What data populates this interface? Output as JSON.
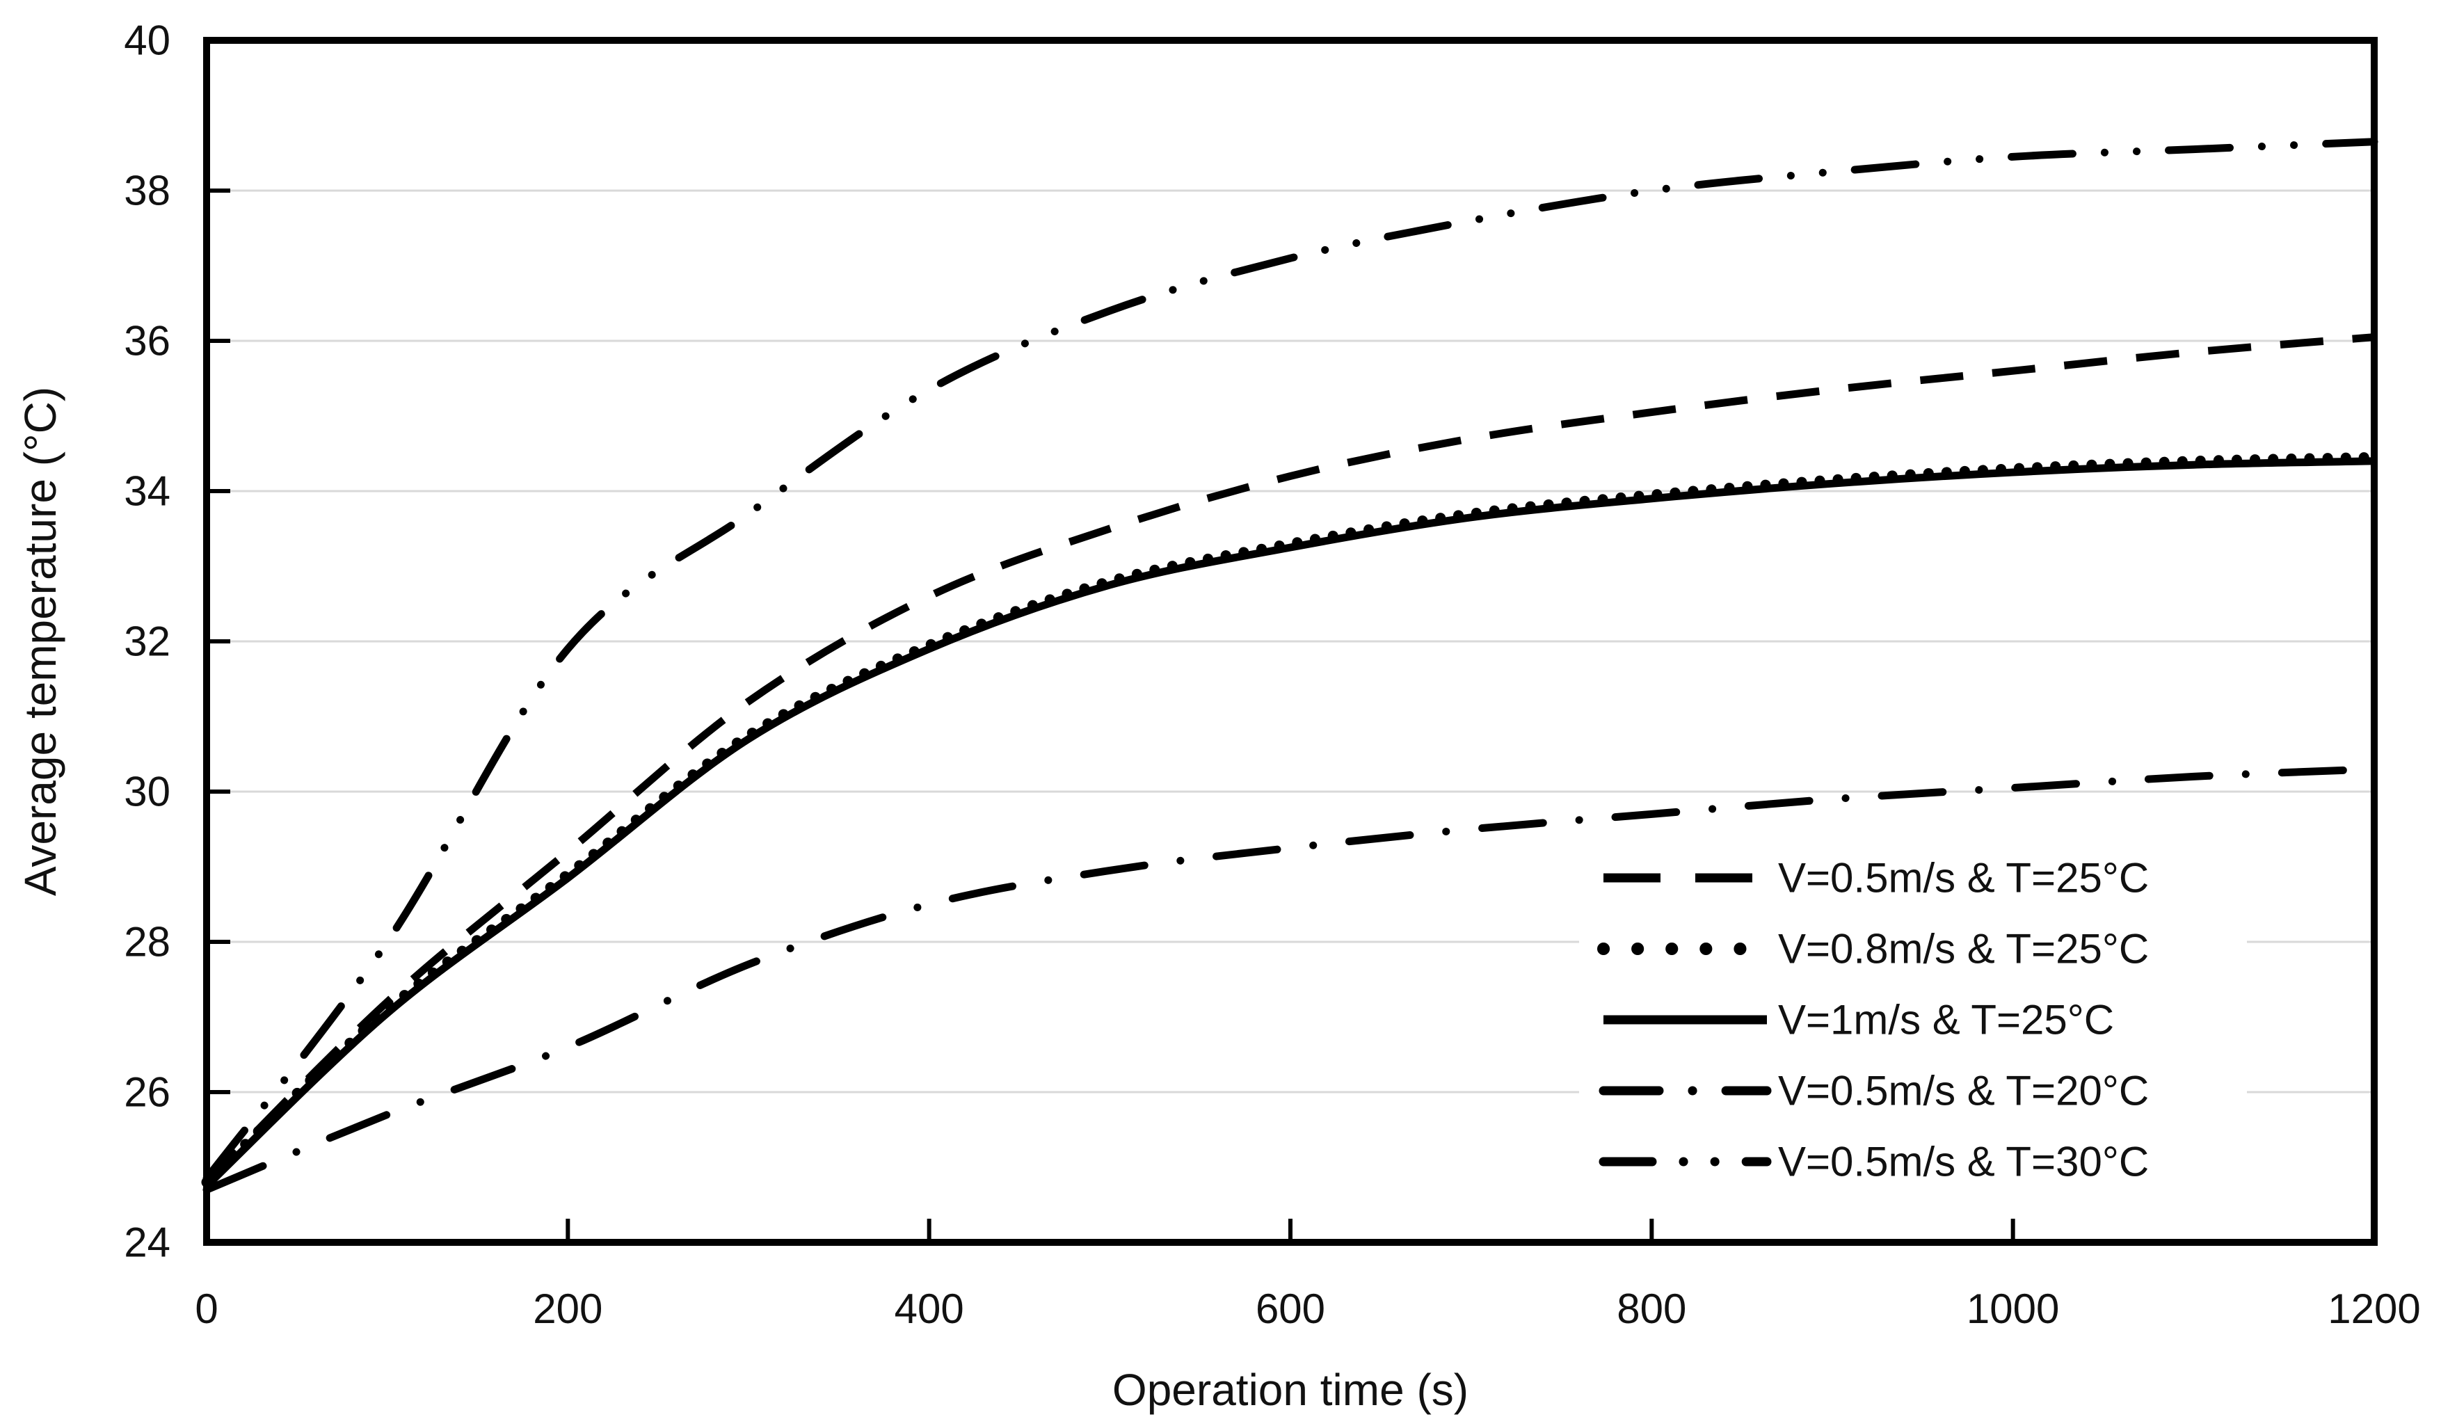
{
  "chart_data": {
    "type": "line",
    "title": "",
    "xlabel": "Operation time (s)",
    "ylabel": "Average temperature (°C)",
    "xlim": [
      0,
      1200
    ],
    "ylim": [
      24,
      40
    ],
    "x_ticks": [
      0,
      200,
      400,
      600,
      800,
      1000,
      1200
    ],
    "y_ticks": [
      24,
      26,
      28,
      30,
      32,
      34,
      36,
      38,
      40
    ],
    "grid": "horizontal",
    "legend_position": "inside-lower-right",
    "x": [
      0,
      100,
      200,
      300,
      400,
      500,
      600,
      700,
      800,
      900,
      1000,
      1100,
      1200
    ],
    "series": [
      {
        "name": "V=0.5m/s & T=25°C",
        "style": "dashed",
        "values": [
          24.8,
          27.2,
          29.2,
          31.2,
          32.6,
          33.5,
          34.2,
          34.7,
          35.05,
          35.35,
          35.6,
          35.85,
          36.05
        ]
      },
      {
        "name": "V=0.8m/s & T=25°C",
        "style": "dotted",
        "values": [
          24.8,
          27.1,
          28.9,
          30.75,
          31.95,
          32.8,
          33.3,
          33.7,
          33.95,
          34.15,
          34.3,
          34.4,
          34.45
        ]
      },
      {
        "name": "V=1m/s & T=25°C",
        "style": "solid",
        "values": [
          24.75,
          27.05,
          28.85,
          30.7,
          31.9,
          32.75,
          33.25,
          33.65,
          33.9,
          34.1,
          34.25,
          34.35,
          34.4
        ]
      },
      {
        "name": "V=0.5m/s & T=20°C",
        "style": "dash-dot",
        "values": [
          24.7,
          25.7,
          26.6,
          27.7,
          28.5,
          28.95,
          29.25,
          29.5,
          29.7,
          29.9,
          30.05,
          30.2,
          30.3
        ]
      },
      {
        "name": "V=0.5m/s & T=30°C",
        "style": "dash-dot-dot",
        "values": [
          24.85,
          28.0,
          31.9,
          33.7,
          35.35,
          36.4,
          37.1,
          37.6,
          38.0,
          38.25,
          38.45,
          38.55,
          38.65
        ]
      }
    ],
    "colors": {
      "line": "#000000",
      "grid": "#d9d9d9",
      "background": "#ffffff",
      "text": "#111111"
    }
  }
}
